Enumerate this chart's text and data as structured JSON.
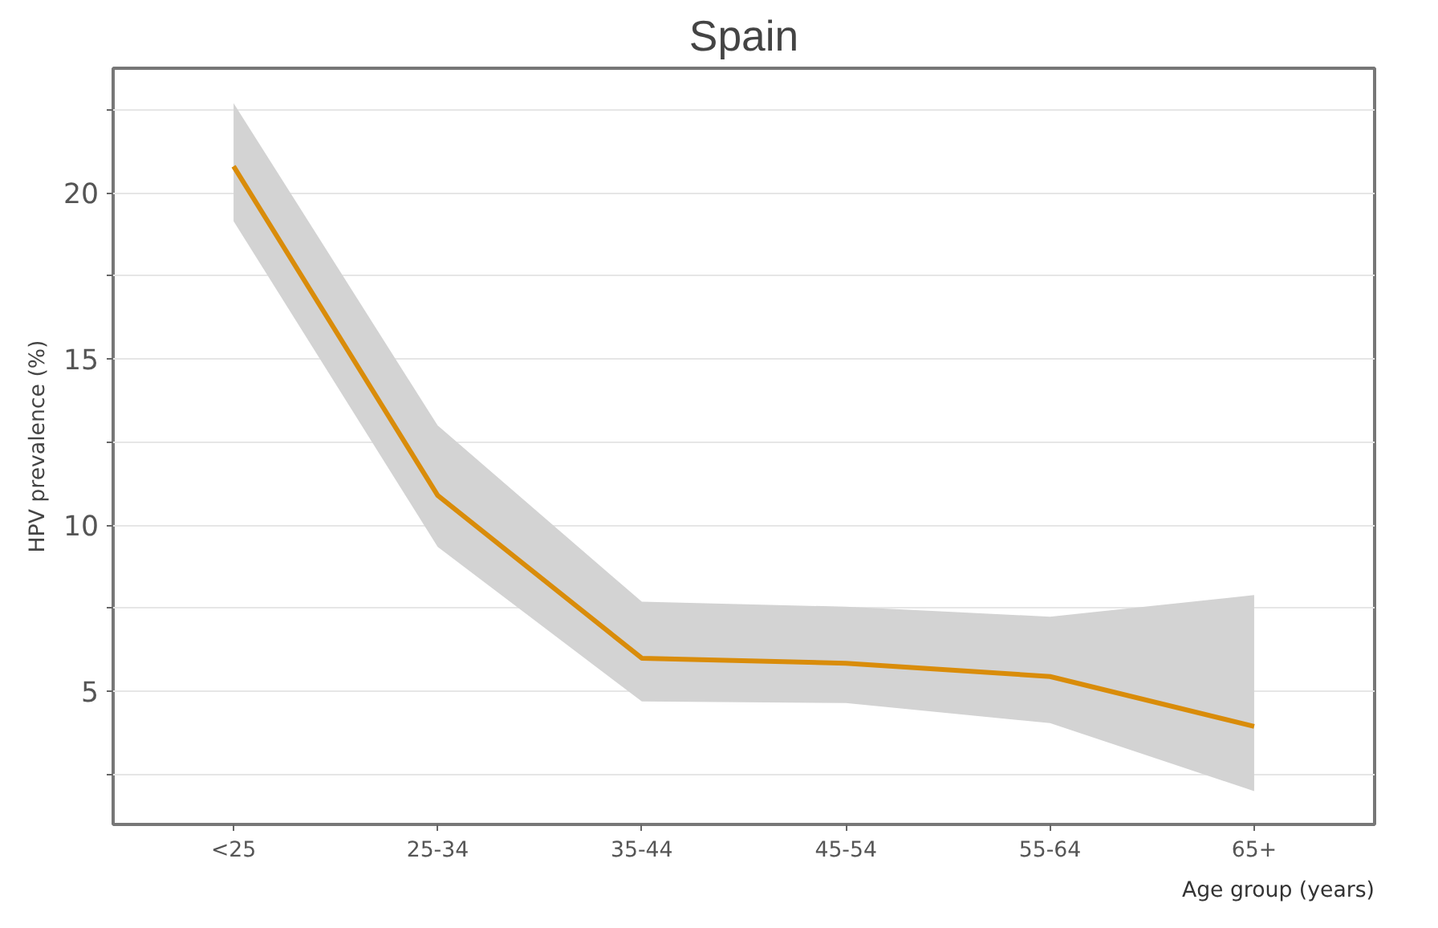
{
  "chart_data": {
    "type": "line",
    "title": "Spain",
    "xlabel": "Age group (years)",
    "ylabel": "HPV prevalence (%)",
    "categories": [
      "<25",
      "25-34",
      "35-44",
      "45-54",
      "55-64",
      "65+"
    ],
    "series": [
      {
        "color": "#d98c0a",
        "values": [
          20.8,
          10.9,
          6.0,
          5.85,
          5.45,
          3.95
        ],
        "lower": [
          19.15,
          9.35,
          4.7,
          4.65,
          4.05,
          2.0
        ],
        "upper": [
          22.7,
          13.0,
          7.7,
          7.55,
          7.25,
          7.9
        ]
      }
    ],
    "ylim": [
      1.0,
      23.75
    ],
    "yticks": [
      {
        "value": 2.5,
        "label": null
      },
      5,
      {
        "value": 7.5,
        "label": null
      },
      10,
      {
        "value": 12.5,
        "label": null
      },
      15,
      {
        "value": 17.5,
        "label": null
      },
      20,
      {
        "value": 22.5,
        "label": null
      }
    ],
    "grid": "y",
    "marker": "none",
    "line_style": "solid"
  }
}
